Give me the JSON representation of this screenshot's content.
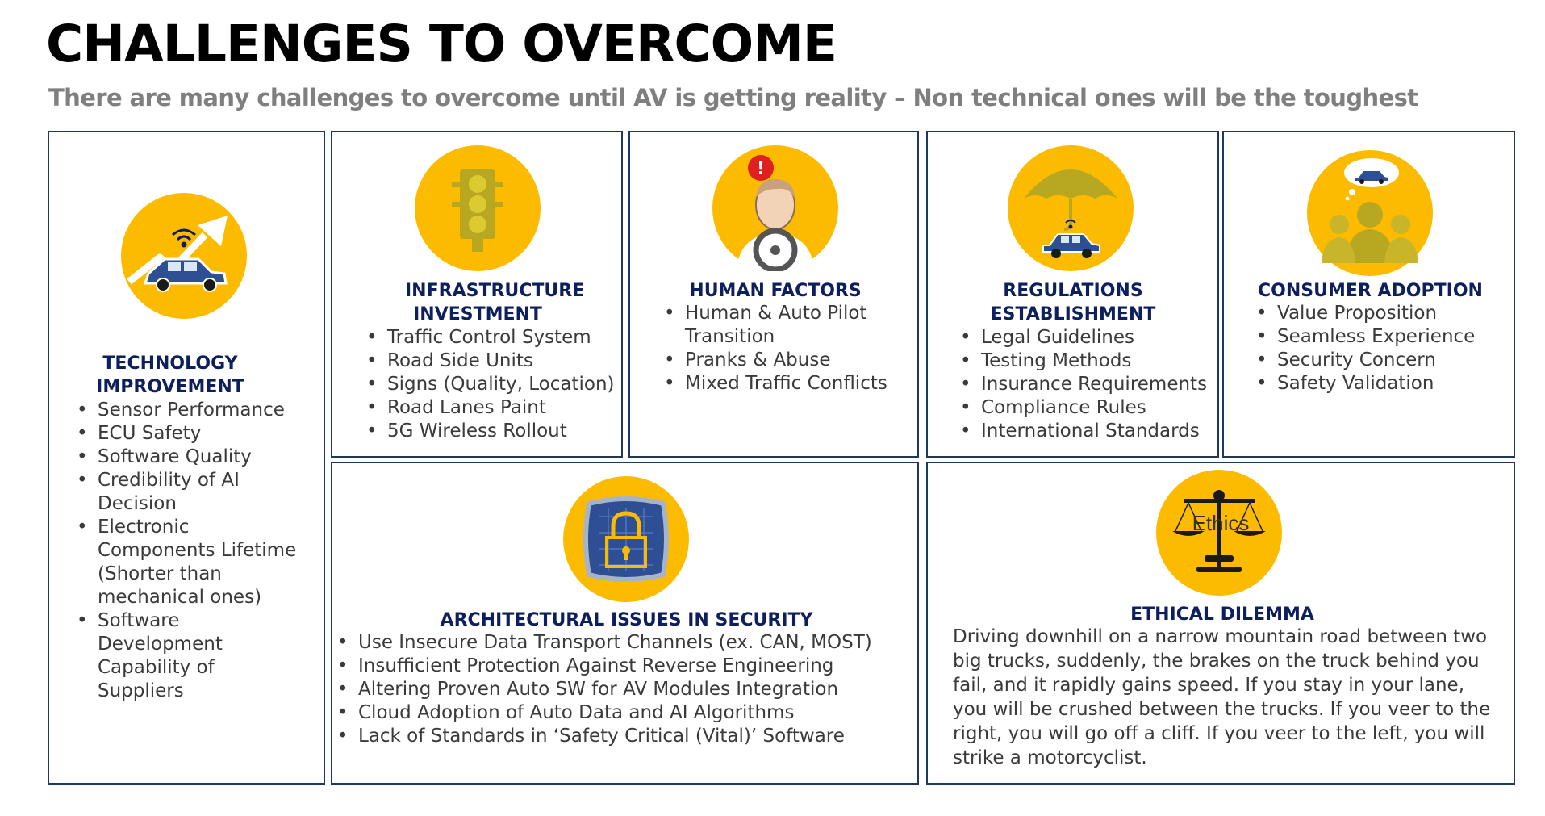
{
  "title": "CHALLENGES TO OVERCOME",
  "subtitle": "There are many challenges to overcome until AV is getting reality – Non technical ones will be the toughest",
  "colors": {
    "border": "#1f3863",
    "heading": "#0d1f5c",
    "icon_bg": "#fdbb00"
  },
  "cards": {
    "technology": {
      "icon": "connected-car-growth-icon",
      "heading": "TECHNOLOGY IMPROVEMENT",
      "items": [
        "Sensor Performance",
        "ECU Safety",
        "Software Quality",
        "Credibility of AI Decision",
        "Electronic Components Lifetime (Shorter than mechanical ones)",
        "Software Development Capability of Suppliers"
      ]
    },
    "infrastructure": {
      "icon": "traffic-light-icon",
      "heading": "INFRASTRUCTURE INVESTMENT",
      "items": [
        "Traffic Control System",
        "Road Side Units",
        "Signs (Quality, Location)",
        "Road Lanes Paint",
        "5G Wireless Rollout"
      ]
    },
    "human": {
      "icon": "driver-alert-icon",
      "heading": "HUMAN FACTORS",
      "items": [
        "Human & Auto Pilot Transition",
        "Pranks & Abuse",
        "Mixed Traffic Conflicts"
      ]
    },
    "regulations": {
      "icon": "umbrella-car-icon",
      "heading": "REGULATIONS ESTABLISHMENT",
      "items": [
        "Legal Guidelines",
        "Testing Methods",
        "Insurance Requirements",
        "Compliance Rules",
        "International Standards"
      ]
    },
    "consumer": {
      "icon": "people-thinking-car-icon",
      "heading": "CONSUMER ADOPTION",
      "items": [
        "Value Proposition",
        "Seamless Experience",
        "Security Concern",
        "Safety Validation"
      ]
    },
    "security": {
      "icon": "padlock-circuit-icon",
      "heading": "ARCHITECTURAL ISSUES IN SECURITY",
      "items": [
        "Use Insecure Data Transport Channels (ex. CAN, MOST)",
        "Insufficient Protection Against Reverse Engineering",
        "Altering Proven Auto SW for AV Modules Integration",
        "Cloud Adoption of Auto Data and AI Algorithms",
        "Lack of Standards in ‘Safety Critical (Vital)’ Software"
      ]
    },
    "ethics": {
      "icon": "ethics-scales-icon",
      "icon_label": "Ethics",
      "heading": "ETHICAL DILEMMA",
      "text": "Driving downhill on a narrow mountain road between two big trucks, suddenly, the brakes on the truck behind you fail, and it rapidly gains speed. If you stay in your lane, you will be crushed between the trucks. If you veer to the right, you will go off a cliff. If you veer to the left, you will strike a motorcyclist."
    }
  }
}
